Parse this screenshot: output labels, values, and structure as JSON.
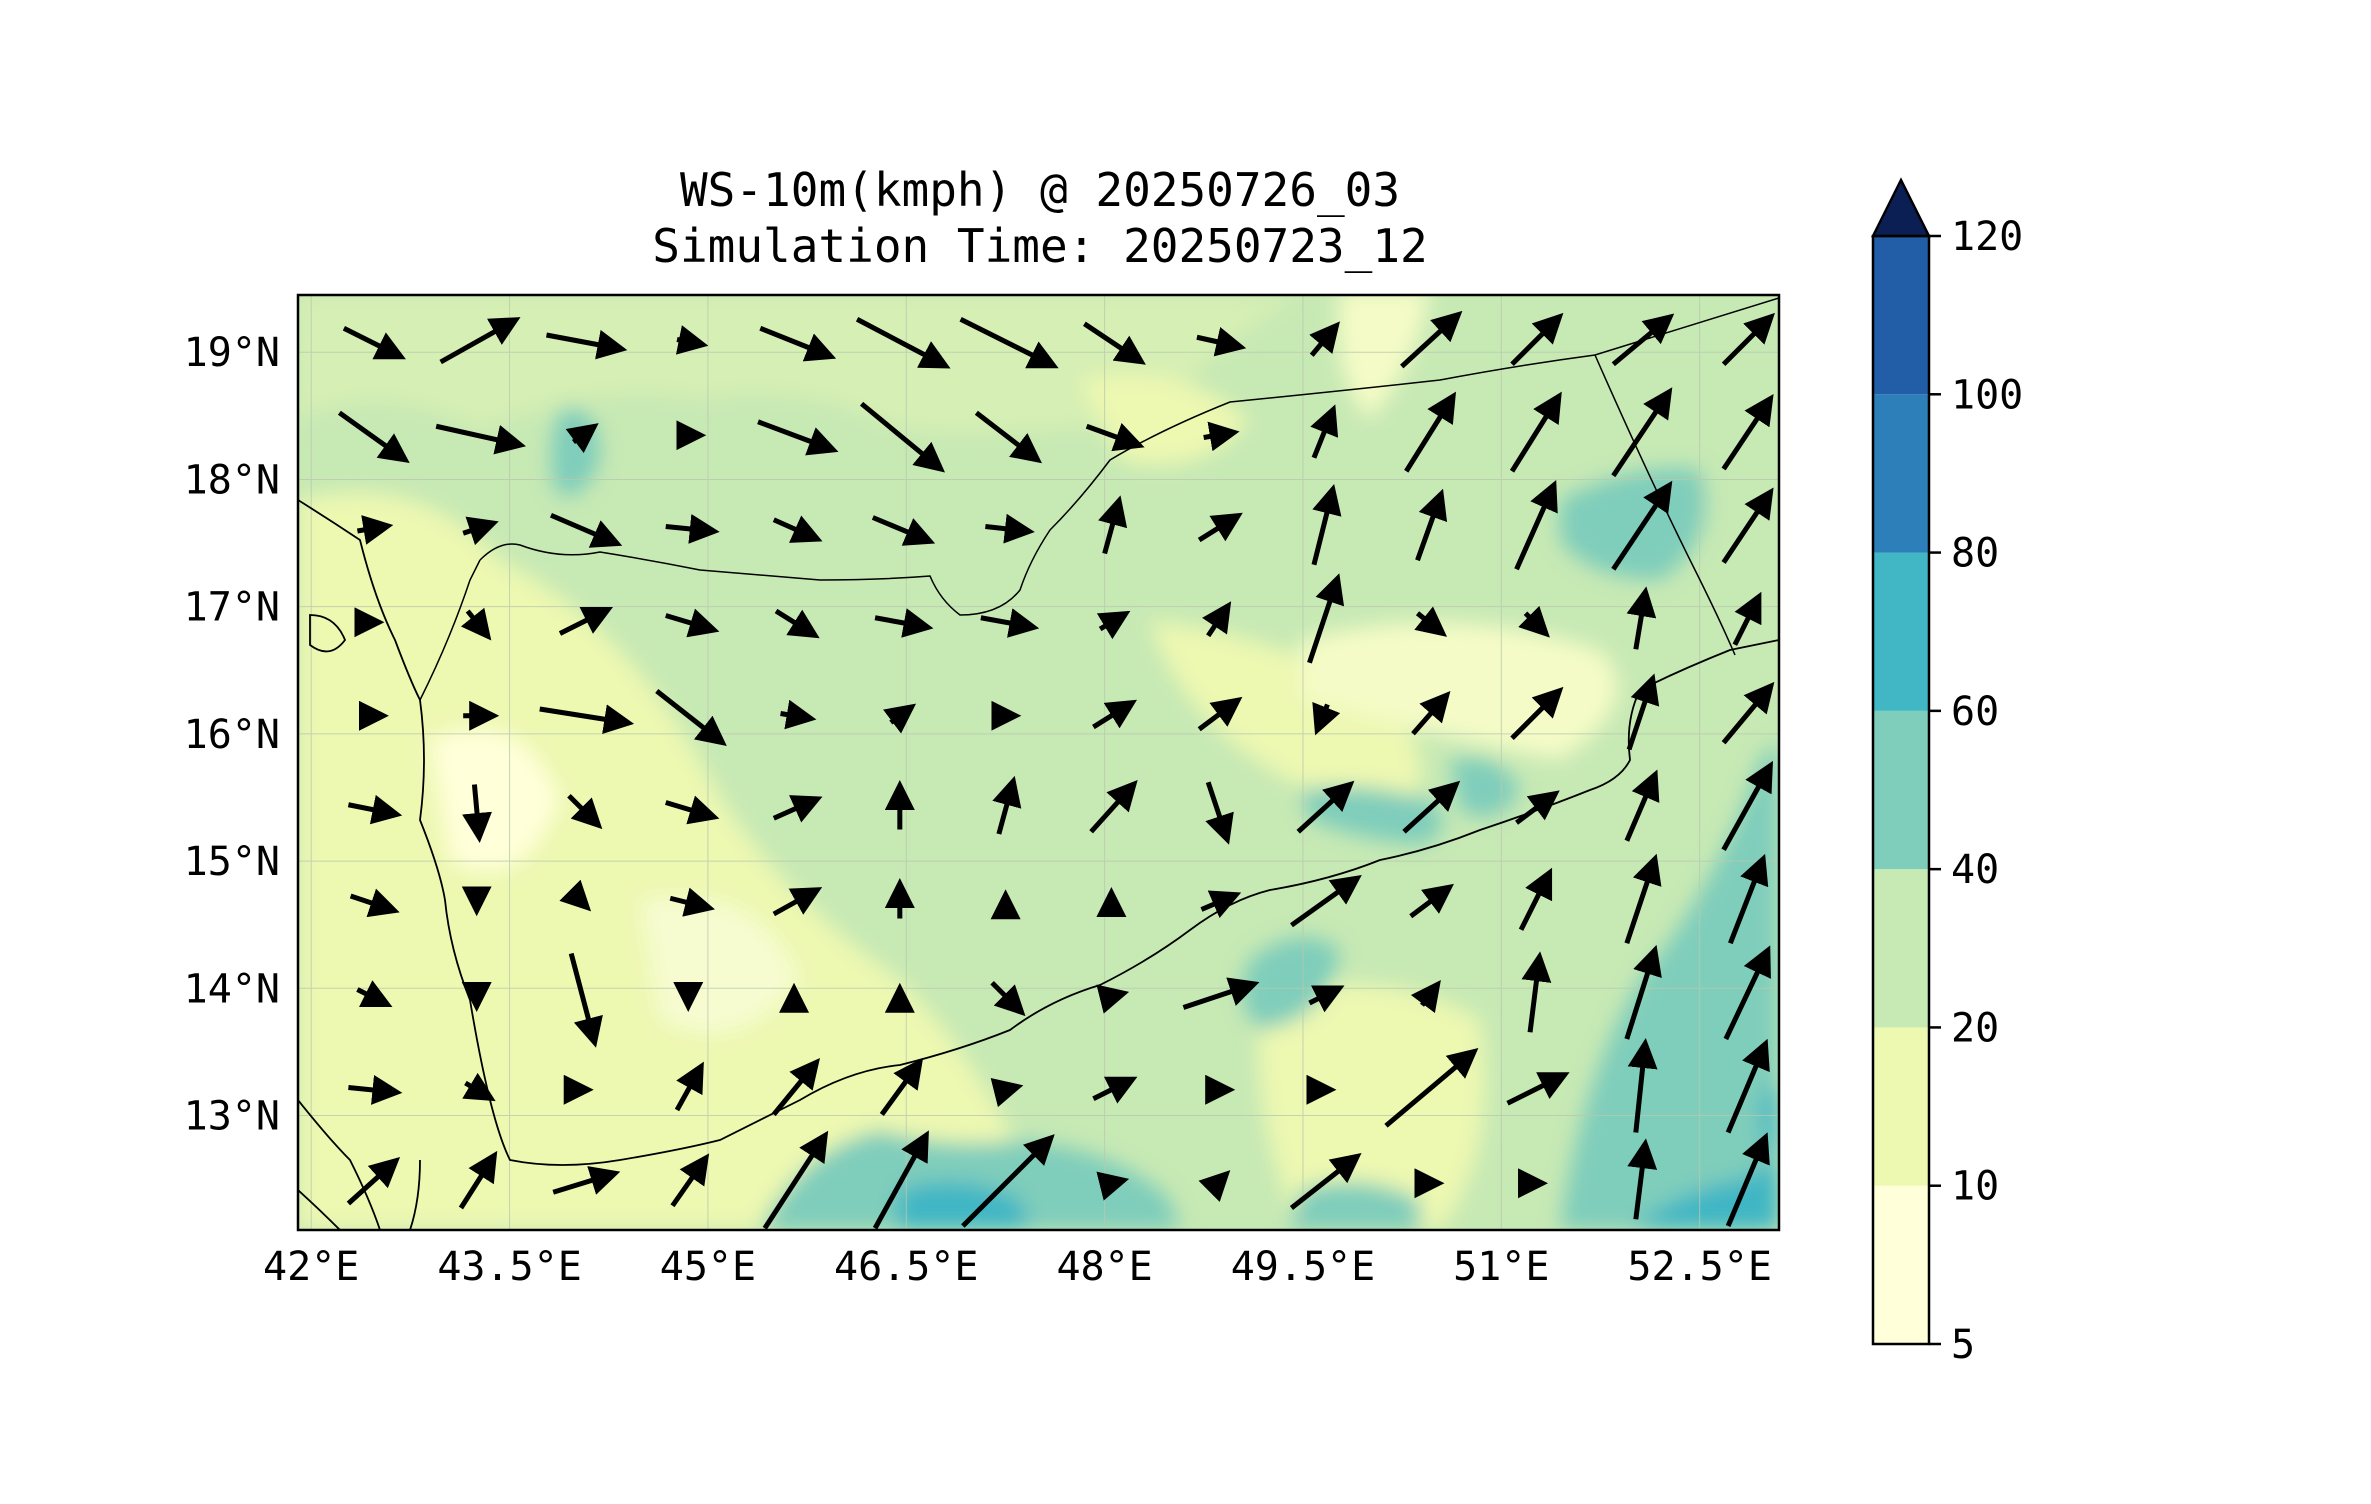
{
  "title": "WS-10m(kmph) @ 20250726_03",
  "subtitle": "Simulation Time: 20250723_12",
  "map": {
    "lon_range": [
      41.9,
      53.1
    ],
    "lat_range": [
      12.1,
      19.45
    ],
    "lon_ticks": [
      {
        "value": 42.0,
        "label": "42°E"
      },
      {
        "value": 43.5,
        "label": "43.5°E"
      },
      {
        "value": 45.0,
        "label": "45°E"
      },
      {
        "value": 46.5,
        "label": "46.5°E"
      },
      {
        "value": 48.0,
        "label": "48°E"
      },
      {
        "value": 49.5,
        "label": "49.5°E"
      },
      {
        "value": 51.0,
        "label": "51°E"
      },
      {
        "value": 52.5,
        "label": "52.5°E"
      }
    ],
    "lat_ticks": [
      {
        "value": 13,
        "label": "13°N"
      },
      {
        "value": 14,
        "label": "14°N"
      },
      {
        "value": 15,
        "label": "15°N"
      },
      {
        "value": 16,
        "label": "16°N"
      },
      {
        "value": 17,
        "label": "17°N"
      },
      {
        "value": 18,
        "label": "18°N"
      },
      {
        "value": 19,
        "label": "19°N"
      }
    ],
    "grid": true
  },
  "colorbar": {
    "levels": [
      {
        "value": 5,
        "label": "5"
      },
      {
        "value": 10,
        "label": "10"
      },
      {
        "value": 20,
        "label": "20"
      },
      {
        "value": 40,
        "label": "40"
      },
      {
        "value": 60,
        "label": "60"
      },
      {
        "value": 80,
        "label": "80"
      },
      {
        "value": 100,
        "label": "100"
      },
      {
        "value": 120,
        "label": "120"
      }
    ],
    "colors": [
      "#ffffd9",
      "#edf8b1",
      "#c7e9b4",
      "#7fcdbb",
      "#41b6c4",
      "#2c7fb8",
      "#225ea8",
      "#1a2f80"
    ],
    "extend_color": "#0c1f55",
    "extend": "max"
  },
  "wind_arrows": {
    "rows": [
      [
        [
          1.2,
          -0.6
        ],
        [
          1.6,
          0.9
        ],
        [
          1.6,
          -0.3
        ],
        [
          0.5,
          -0.1
        ],
        [
          1.5,
          -0.6
        ],
        [
          1.9,
          -1.0
        ],
        [
          2.0,
          -1.0
        ],
        [
          1.2,
          -0.8
        ],
        [
          0.9,
          -0.2
        ],
        [
          0.5,
          0.6
        ],
        [
          1.2,
          1.1
        ],
        [
          1.0,
          1.0
        ],
        [
          1.2,
          1.0
        ],
        [
          1.0,
          1.0
        ]
      ],
      [
        [
          1.4,
          -1.0
        ],
        [
          1.8,
          -0.4
        ],
        [
          0.4,
          0.3
        ],
        [
          0.4,
          0.0
        ],
        [
          1.6,
          -0.6
        ],
        [
          1.7,
          -1.4
        ],
        [
          1.3,
          -1.0
        ],
        [
          1.1,
          -0.4
        ],
        [
          0.6,
          0.1
        ],
        [
          0.4,
          1.0
        ],
        [
          1.0,
          1.6
        ],
        [
          1.0,
          1.6
        ],
        [
          1.2,
          1.8
        ],
        [
          1.0,
          1.5
        ]
      ],
      [
        [
          0.6,
          0.1
        ],
        [
          0.6,
          0.2
        ],
        [
          1.4,
          -0.6
        ],
        [
          1.0,
          -0.1
        ],
        [
          0.9,
          -0.4
        ],
        [
          1.2,
          -0.5
        ],
        [
          0.9,
          -0.1
        ],
        [
          0.3,
          1.1
        ],
        [
          0.8,
          0.5
        ],
        [
          0.4,
          1.6
        ],
        [
          0.5,
          1.4
        ],
        [
          0.8,
          1.8
        ],
        [
          1.2,
          1.8
        ],
        [
          1.0,
          1.5
        ]
      ],
      [
        [
          0.2,
          0.0
        ],
        [
          0.4,
          -0.5
        ],
        [
          1.0,
          0.5
        ],
        [
          1.0,
          -0.3
        ],
        [
          0.8,
          -0.5
        ],
        [
          1.1,
          -0.2
        ],
        [
          1.1,
          -0.2
        ],
        [
          0.5,
          0.3
        ],
        [
          0.4,
          0.6
        ],
        [
          0.6,
          1.8
        ],
        [
          0.5,
          -0.4
        ],
        [
          0.4,
          -0.4
        ],
        [
          0.2,
          1.2
        ],
        [
          0.5,
          1.0
        ]
      ],
      [
        [
          0.4,
          0.0
        ],
        [
          0.6,
          0.0
        ],
        [
          1.9,
          -0.3
        ],
        [
          1.4,
          -1.1
        ],
        [
          0.6,
          -0.1
        ],
        [
          0.4,
          0.3
        ],
        [
          0.3,
          0.0
        ],
        [
          0.8,
          0.5
        ],
        [
          0.8,
          0.6
        ],
        [
          -0.2,
          -0.5
        ],
        [
          0.7,
          0.8
        ],
        [
          1.0,
          1.0
        ],
        [
          0.5,
          1.5
        ],
        [
          1.0,
          1.2
        ]
      ],
      [
        [
          1.0,
          -0.2
        ],
        [
          0.1,
          -1.1
        ],
        [
          0.6,
          -0.6
        ],
        [
          1.0,
          -0.3
        ],
        [
          0.9,
          0.4
        ],
        [
          0.0,
          0.9
        ],
        [
          0.3,
          1.1
        ],
        [
          0.9,
          1.0
        ],
        [
          0.4,
          -1.2
        ],
        [
          1.1,
          1.0
        ],
        [
          1.1,
          1.0
        ],
        [
          0.8,
          0.6
        ],
        [
          0.6,
          1.4
        ],
        [
          1.0,
          1.8
        ]
      ],
      [
        [
          0.9,
          -0.3
        ],
        [
          0.0,
          -0.2
        ],
        [
          0.1,
          -0.1
        ],
        [
          0.8,
          -0.2
        ],
        [
          0.9,
          0.5
        ],
        [
          0.0,
          0.7
        ],
        [
          0.0,
          0.2
        ],
        [
          0.0,
          0.3
        ],
        [
          0.7,
          0.3
        ],
        [
          1.4,
          1.0
        ],
        [
          0.8,
          0.6
        ],
        [
          0.6,
          1.2
        ],
        [
          0.6,
          1.8
        ],
        [
          0.7,
          1.8
        ]
      ],
      [
        [
          0.6,
          -0.3
        ],
        [
          0.0,
          -0.3
        ],
        [
          0.5,
          -1.9
        ],
        [
          0.0,
          -0.3
        ],
        [
          0.0,
          0.2
        ],
        [
          0.0,
          0.2
        ],
        [
          0.6,
          -0.6
        ],
        [
          0.4,
          0.1
        ],
        [
          1.5,
          0.5
        ],
        [
          0.6,
          0.3
        ],
        [
          0.3,
          0.4
        ],
        [
          0.2,
          1.6
        ],
        [
          0.6,
          1.9
        ],
        [
          0.9,
          1.9
        ]
      ],
      [
        [
          1.0,
          -0.1
        ],
        [
          0.5,
          -0.3
        ],
        [
          0.1,
          0.0
        ],
        [
          0.5,
          0.9
        ],
        [
          0.9,
          1.1
        ],
        [
          0.8,
          1.1
        ],
        [
          0.4,
          0.1
        ],
        [
          0.8,
          0.4
        ],
        [
          0.4,
          0.0
        ],
        [
          0.2,
          0.0
        ],
        [
          1.9,
          1.6
        ],
        [
          1.2,
          0.6
        ],
        [
          0.2,
          1.9
        ],
        [
          0.8,
          1.9
        ]
      ],
      [
        [
          1.0,
          0.9
        ],
        [
          0.7,
          1.1
        ],
        [
          1.3,
          0.4
        ],
        [
          0.7,
          1.0
        ],
        [
          1.3,
          2.0
        ],
        [
          1.1,
          2.0
        ],
        [
          1.9,
          1.9
        ],
        [
          0.4,
          0.1
        ],
        [
          0.3,
          0.3
        ],
        [
          1.4,
          1.1
        ],
        [
          0.3,
          0.0
        ],
        [
          0.2,
          0.0
        ],
        [
          0.2,
          1.6
        ],
        [
          0.8,
          1.9
        ]
      ]
    ]
  }
}
